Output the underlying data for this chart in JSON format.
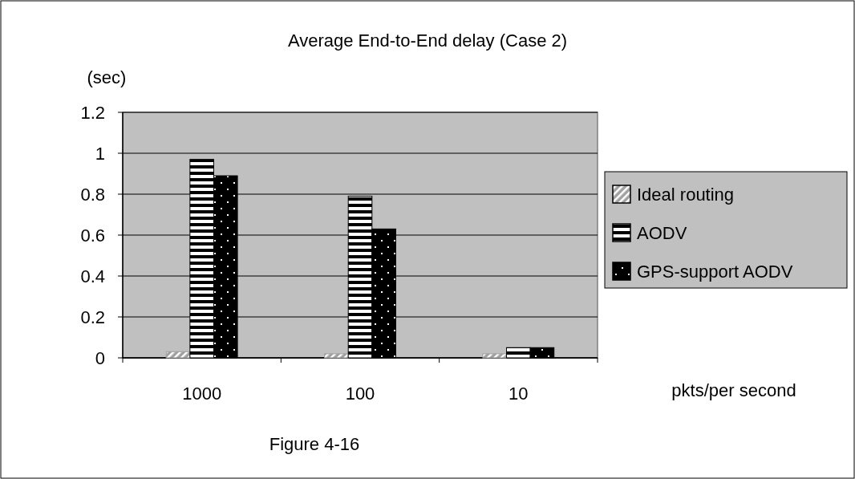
{
  "chart_data": {
    "type": "bar",
    "title": "Average End-to-End delay (Case 2)",
    "ylabel": "(sec)",
    "xlabel": "pkts/per second",
    "annotations": [
      "Figure 4-16"
    ],
    "categories": [
      "1000",
      "100",
      "10"
    ],
    "series": [
      {
        "name": "Ideal routing",
        "color": "#a0a0a0",
        "values": [
          0.03,
          0.02,
          0.02
        ]
      },
      {
        "name": "AODV",
        "color": "#000000",
        "values": [
          0.97,
          0.79,
          0.05
        ]
      },
      {
        "name": "GPS-support AODV",
        "color": "#000000",
        "values": [
          0.89,
          0.63,
          0.05
        ]
      }
    ],
    "ylim": [
      0,
      1.2
    ],
    "yticks": [
      0,
      0.2,
      0.4,
      0.6,
      0.8,
      1,
      1.2
    ],
    "grid": "y",
    "legend": "right"
  }
}
